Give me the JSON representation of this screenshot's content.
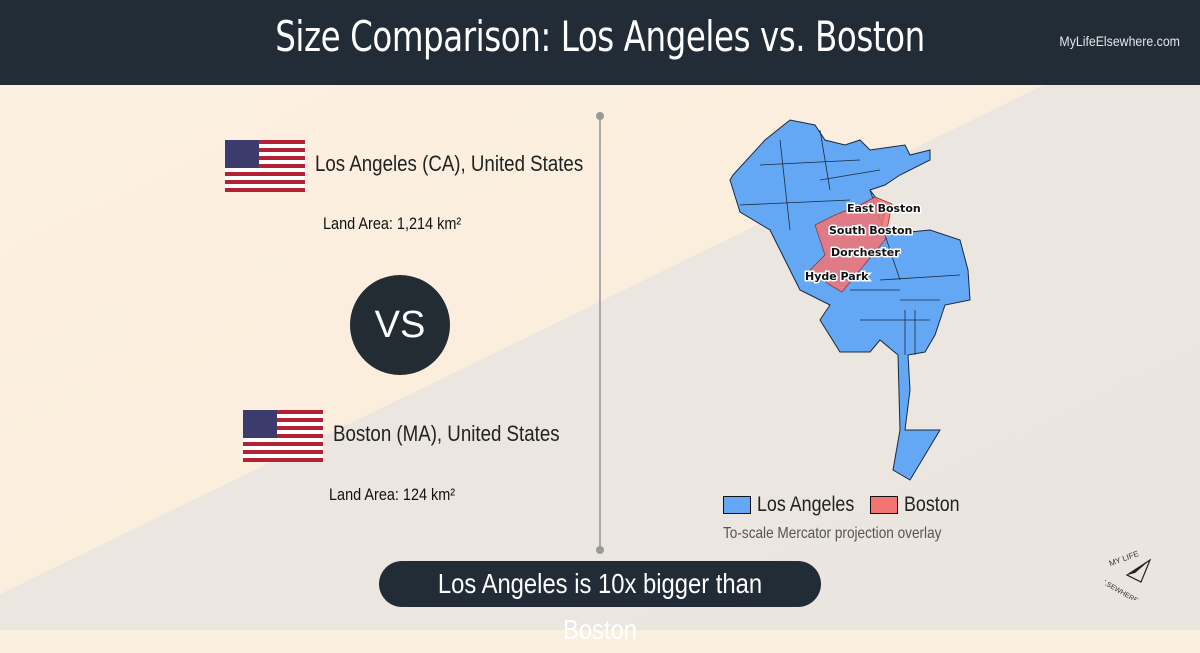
{
  "header": {
    "title": "Size Comparison: Los Angeles vs. Boston",
    "site": "MyLifeElsewhere.com"
  },
  "city1": {
    "name": "Los Angeles (CA), United States",
    "land_area": "Land Area: 1,214 km²",
    "flag": "us-flag"
  },
  "city2": {
    "name": "Boston (MA), United States",
    "land_area": "Land Area: 124 km²",
    "flag": "us-flag"
  },
  "vs_label": "VS",
  "map": {
    "labels": [
      "East Boston",
      "South Boston",
      "Dorchester",
      "Hyde Park"
    ],
    "legend": [
      {
        "label": "Los Angeles",
        "color": "#64a8f5"
      },
      {
        "label": "Boston",
        "color": "#f47373"
      }
    ],
    "note": "To-scale Mercator projection overlay"
  },
  "summary": "Los Angeles is 10x bigger than Boston",
  "logo": {
    "text": "MY LIFE ELSEWHERE"
  }
}
